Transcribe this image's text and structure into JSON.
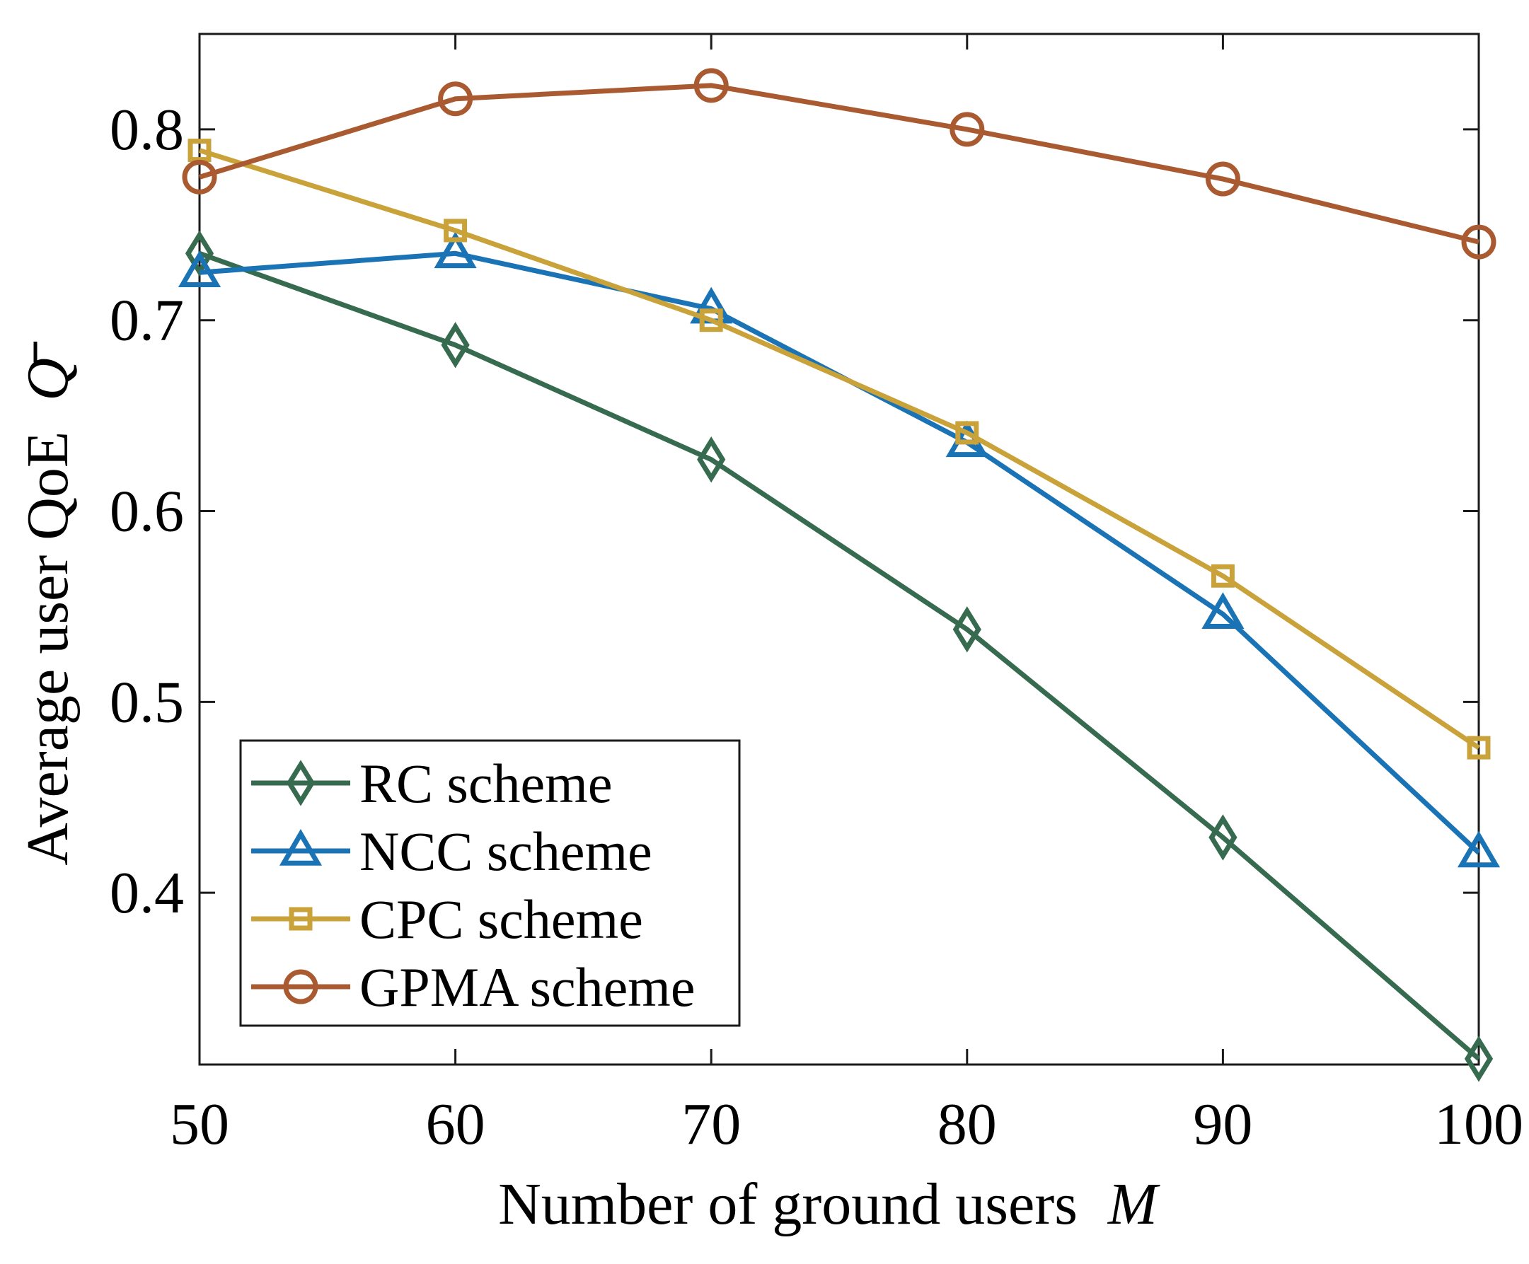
{
  "chart_data": {
    "type": "line",
    "x": [
      50,
      60,
      70,
      80,
      90,
      100
    ],
    "xticks": [
      50,
      60,
      70,
      80,
      90,
      100
    ],
    "yticks": [
      0.4,
      0.5,
      0.6,
      0.7,
      0.8
    ],
    "xlim": [
      50,
      100
    ],
    "ylim": [
      0.31,
      0.85
    ],
    "xlabel": "Number of ground users",
    "xlabel_symbol": "M",
    "ylabel": "Average user QoE",
    "ylabel_symbol": "Q",
    "grid": false,
    "legend_position": "bottom-left",
    "series": [
      {
        "name": "RC scheme",
        "marker": "diamond",
        "color": "#376b4f",
        "values": [
          0.735,
          0.687,
          0.627,
          0.538,
          0.429,
          0.313
        ]
      },
      {
        "name": "NCC scheme",
        "marker": "triangle",
        "color": "#1a73b5",
        "values": [
          0.725,
          0.735,
          0.706,
          0.636,
          0.546,
          0.421
        ]
      },
      {
        "name": "CPC scheme",
        "marker": "square",
        "color": "#c9a23a",
        "values": [
          0.789,
          0.747,
          0.7,
          0.641,
          0.566,
          0.476
        ]
      },
      {
        "name": "GPMA scheme",
        "marker": "circle",
        "color": "#a95a30",
        "values": [
          0.775,
          0.816,
          0.823,
          0.8,
          0.774,
          0.741
        ]
      }
    ]
  }
}
